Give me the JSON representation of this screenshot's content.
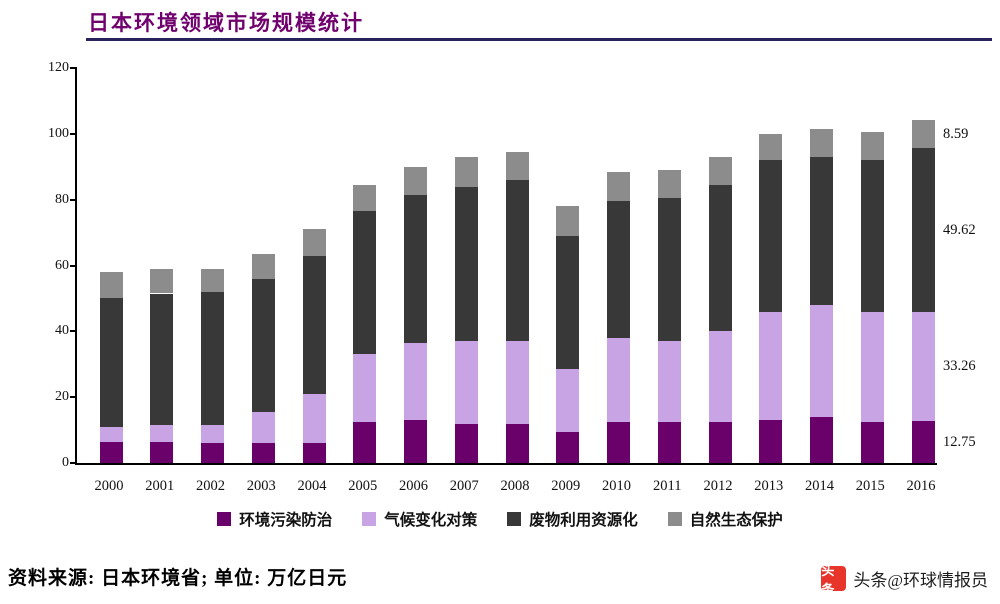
{
  "page": {
    "title": "日本环境领域市场规模统计",
    "footer": "资料来源: 日本环境省; 单位: 万亿日元",
    "watermark": "头条@环球情报员",
    "logo_text": "头条",
    "colors": {
      "title": "#70006e",
      "rule": "#29235c",
      "logo": "#e8352c"
    }
  },
  "chart_data": {
    "type": "bar",
    "stacked": true,
    "title": "日本环境领域市场规模统计",
    "xlabel": "",
    "ylabel": "",
    "ylim": [
      0,
      120
    ],
    "yticks": [
      0,
      20,
      40,
      60,
      80,
      100,
      120
    ],
    "grid": false,
    "legend_position": "bottom",
    "categories": [
      "2000",
      "2001",
      "2002",
      "2003",
      "2004",
      "2005",
      "2006",
      "2007",
      "2008",
      "2009",
      "2010",
      "2011",
      "2012",
      "2013",
      "2014",
      "2015",
      "2016"
    ],
    "series": [
      {
        "name": "环境污染防治",
        "color": "#6a006a",
        "values": [
          6.5,
          6.5,
          6.0,
          6.0,
          6.0,
          12.5,
          13.0,
          12.0,
          12.0,
          9.5,
          12.5,
          12.5,
          12.5,
          13.0,
          14.0,
          12.5,
          12.75
        ]
      },
      {
        "name": "气候变化对策",
        "color": "#c9a4e4",
        "values": [
          4.5,
          5.0,
          5.5,
          9.5,
          15.0,
          20.5,
          23.5,
          25.0,
          25.0,
          19.0,
          25.5,
          24.5,
          27.5,
          33.0,
          34.0,
          33.5,
          33.26
        ]
      },
      {
        "name": "废物利用资源化",
        "color": "#383838",
        "values": [
          39.0,
          40.0,
          40.5,
          40.5,
          42.0,
          43.5,
          45.0,
          47.0,
          49.0,
          40.5,
          41.5,
          43.5,
          44.5,
          46.0,
          45.0,
          46.0,
          49.62
        ]
      },
      {
        "name": "自然生态保护",
        "color": "#8c8c8c",
        "values": [
          8.0,
          7.5,
          7.0,
          7.5,
          8.0,
          8.0,
          8.5,
          9.0,
          8.5,
          9.0,
          9.0,
          8.5,
          8.5,
          8.0,
          8.5,
          8.5,
          8.59
        ]
      }
    ],
    "annotations": [
      {
        "text": "8.59",
        "series": 3
      },
      {
        "text": "49.62",
        "series": 2
      },
      {
        "text": "33.26",
        "series": 1
      },
      {
        "text": "12.75",
        "series": 0
      }
    ]
  }
}
